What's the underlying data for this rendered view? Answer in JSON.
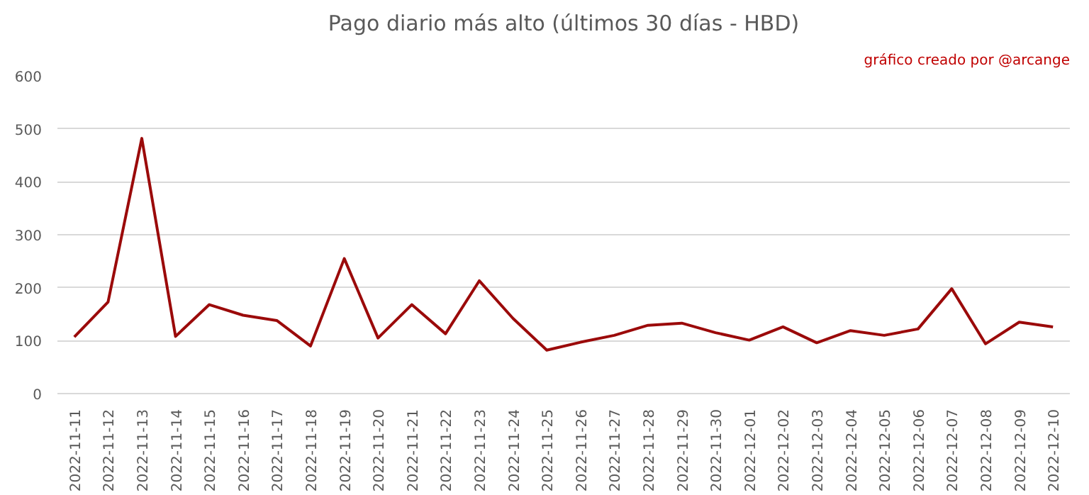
{
  "chart_data": {
    "type": "line",
    "title": "Pago diario más alto (últimos 30 días - HBD)",
    "annotations": [
      "gráfico creado por @arcange"
    ],
    "categories": [
      "2022-11-11",
      "2022-11-12",
      "2022-11-13",
      "2022-11-14",
      "2022-11-15",
      "2022-11-16",
      "2022-11-17",
      "2022-11-18",
      "2022-11-19",
      "2022-11-20",
      "2022-11-21",
      "2022-11-22",
      "2022-11-23",
      "2022-11-24",
      "2022-11-25",
      "2022-11-26",
      "2022-11-27",
      "2022-11-28",
      "2022-11-29",
      "2022-11-30",
      "2022-12-01",
      "2022-12-02",
      "2022-12-03",
      "2022-12-04",
      "2022-12-05",
      "2022-12-06",
      "2022-12-07",
      "2022-12-08",
      "2022-12-09",
      "2022-12-10"
    ],
    "series": [
      {
        "color": "#9b0a0a",
        "values": [
          107,
          173,
          482,
          108,
          168,
          148,
          138,
          90,
          255,
          105,
          168,
          113,
          213,
          142,
          82,
          97,
          110,
          129,
          133,
          115,
          101,
          126,
          96,
          119,
          110,
          122,
          198,
          94,
          135,
          126
        ]
      }
    ],
    "ylim": [
      0,
      600
    ],
    "yticks": [
      0,
      100,
      200,
      300,
      400,
      500,
      600
    ],
    "grid": "y",
    "marker": "none",
    "line_style": "solid"
  }
}
